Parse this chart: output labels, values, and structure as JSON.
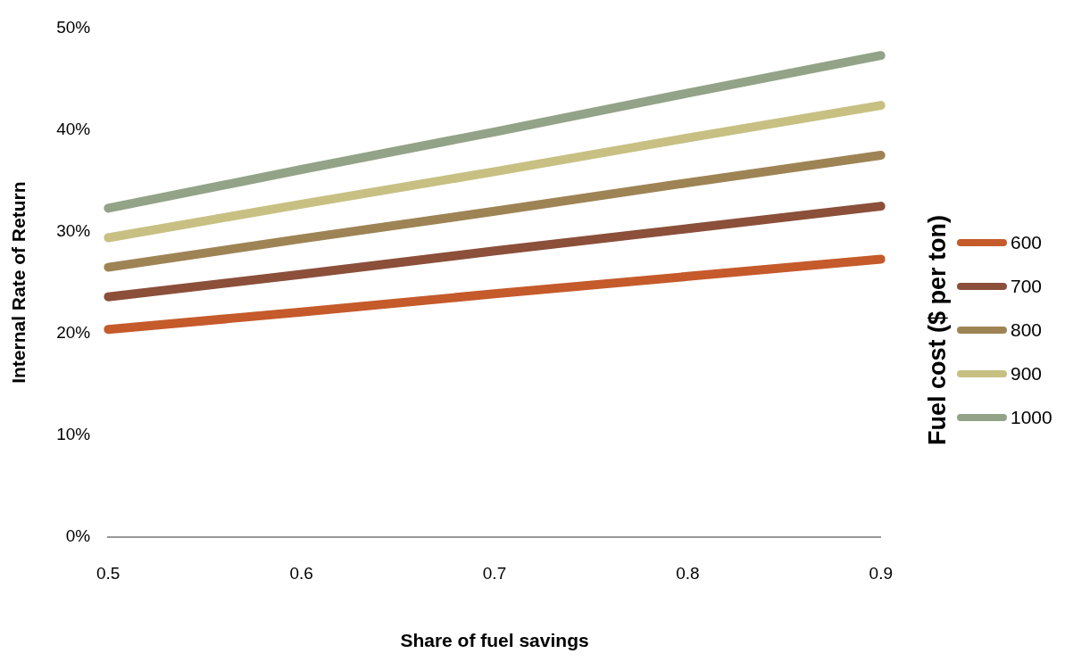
{
  "chart_data": {
    "type": "line",
    "xlabel": "Share of fuel savings",
    "ylabel": "Internal Rate of Return",
    "legend_title": "Fuel cost ($ per ton)",
    "legend": "right",
    "grid": false,
    "marker": "none",
    "line_style": "solid",
    "categories": [
      "0.5",
      "0.6",
      "0.7",
      "0.8",
      "0.9"
    ],
    "ylim": [
      0,
      50
    ],
    "yticks": [
      {
        "value": 0,
        "label": "0%"
      },
      {
        "value": 10,
        "label": "10%"
      },
      {
        "value": 20,
        "label": "20%"
      },
      {
        "value": 30,
        "label": "30%"
      },
      {
        "value": 40,
        "label": "40%"
      },
      {
        "value": 50,
        "label": "50%"
      }
    ],
    "series": [
      {
        "name": "600",
        "color": "#c55a2b",
        "values": [
          20.4,
          22.1,
          23.9,
          25.6,
          27.3
        ]
      },
      {
        "name": "700",
        "color": "#8b4f3a",
        "values": [
          23.6,
          25.8,
          28.1,
          30.3,
          32.5
        ]
      },
      {
        "name": "800",
        "color": "#9e8455",
        "values": [
          26.5,
          29.3,
          32.0,
          34.8,
          37.5
        ]
      },
      {
        "name": "900",
        "color": "#c8c083",
        "values": [
          29.4,
          32.7,
          35.9,
          39.2,
          42.4
        ]
      },
      {
        "name": "1000",
        "color": "#93a387",
        "values": [
          32.3,
          36.1,
          39.8,
          43.6,
          47.3
        ]
      }
    ]
  }
}
